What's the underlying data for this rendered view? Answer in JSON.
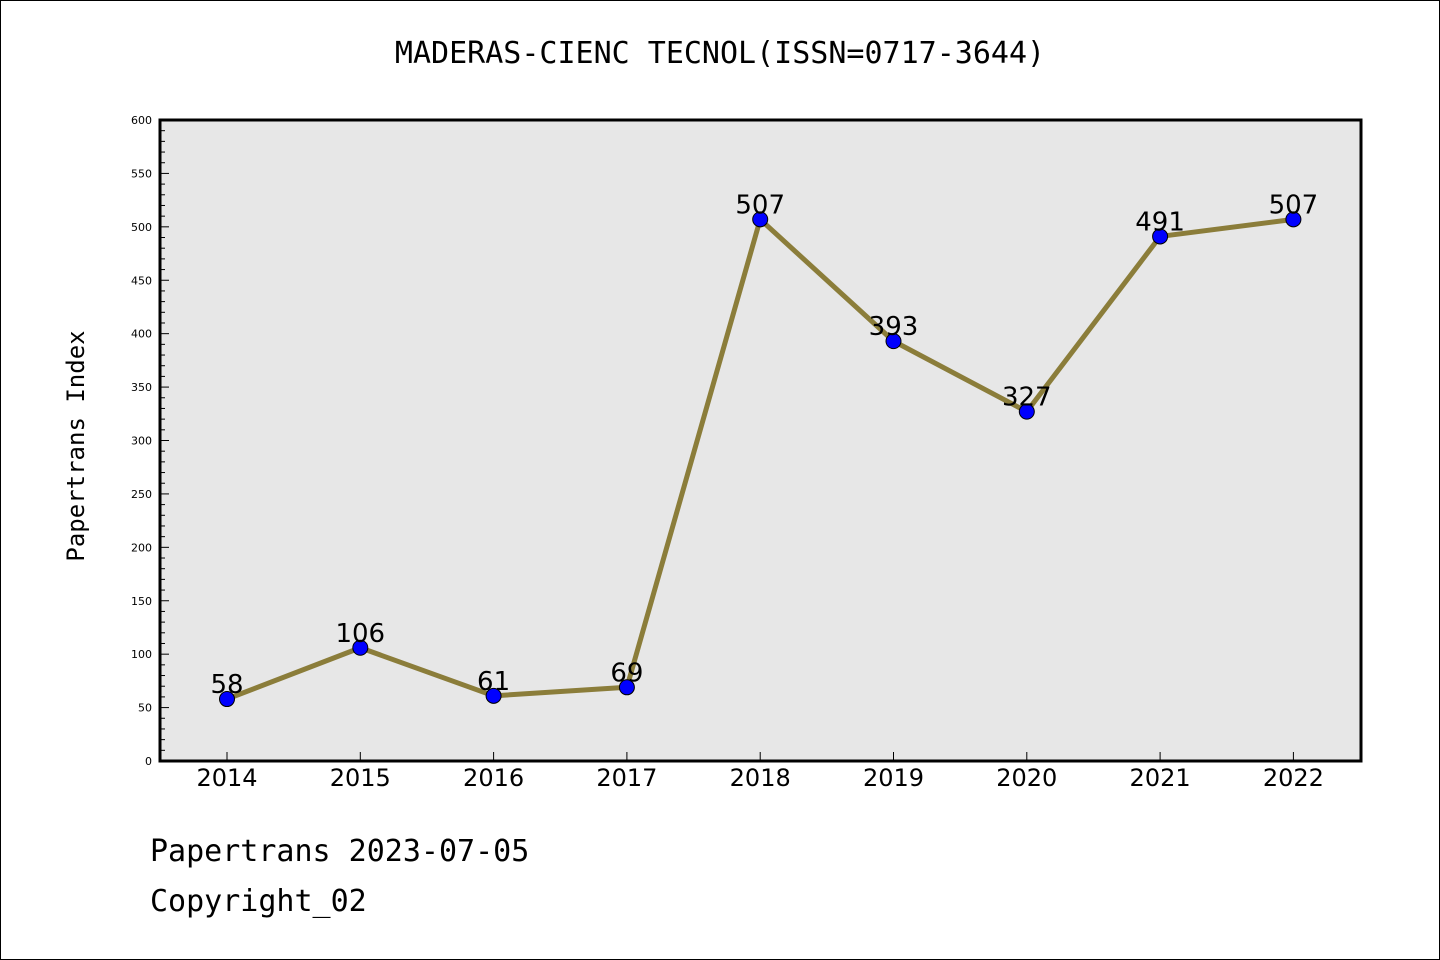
{
  "chart_data": {
    "type": "line",
    "title": "MADERAS-CIENC TECNOL(ISSN=0717-3644)",
    "ylabel": "Papertrans Index",
    "xlabel": "",
    "categories": [
      "2014",
      "2015",
      "2016",
      "2017",
      "2018",
      "2019",
      "2020",
      "2021",
      "2022"
    ],
    "series": [
      {
        "values": [
          58,
          106,
          61,
          69,
          507,
          393,
          327,
          491,
          507
        ]
      }
    ],
    "ylim": [
      0,
      600
    ],
    "yticks": [
      0,
      50,
      100,
      150,
      200,
      250,
      300,
      350,
      400,
      450,
      500,
      550,
      600
    ],
    "grid": false,
    "data_labels": true,
    "colors": {
      "line": "#8b7d3a",
      "marker": "#0000ff",
      "plot_background": "#e7e7e7"
    }
  },
  "footer": {
    "line1": "Papertrans 2023-07-05",
    "line2": "Copyright_02"
  }
}
